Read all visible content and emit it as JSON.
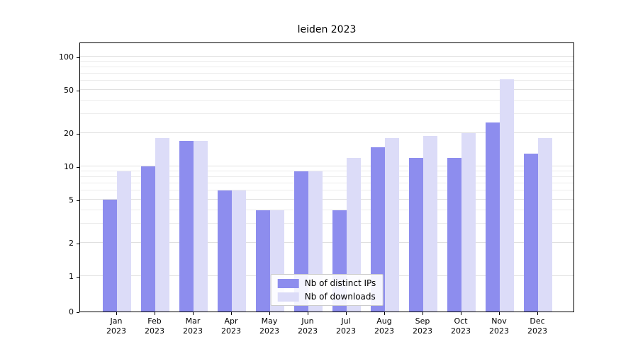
{
  "title": "leiden 2023",
  "chart_data": {
    "type": "bar",
    "title": "leiden 2023",
    "categories": [
      "Jan",
      "Feb",
      "Mar",
      "Apr",
      "May",
      "Jun",
      "Jul",
      "Aug",
      "Sep",
      "Oct",
      "Nov",
      "Dec"
    ],
    "year": "2023",
    "series": [
      {
        "name": "Nb of distinct IPs",
        "color": "#8d8dee",
        "values": [
          5,
          10,
          17,
          6,
          4,
          9,
          4,
          15,
          12,
          12,
          25,
          13
        ]
      },
      {
        "name": "Nb of downloads",
        "color": "#dcdcf8",
        "values": [
          9,
          18,
          17,
          6,
          4,
          9,
          12,
          18,
          19,
          20,
          62,
          18
        ]
      }
    ],
    "yscale": "symlog",
    "y_ticks": [
      0,
      1,
      2,
      5,
      10,
      20,
      50,
      100
    ],
    "ylim": [
      0,
      150
    ],
    "grid": true,
    "legend_position": "lower center"
  }
}
